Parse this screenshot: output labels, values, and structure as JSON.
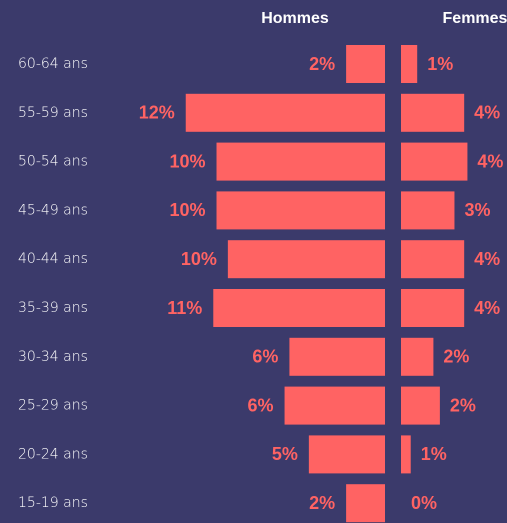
{
  "chart_data": {
    "type": "pyramid",
    "categories": [
      "60-64 ans",
      "55-59 ans",
      "50-54 ans",
      "45-49 ans",
      "40-44 ans",
      "35-39 ans",
      "30-34 ans",
      "25-29 ans",
      "20-24 ans",
      "15-19 ans"
    ],
    "series": [
      {
        "name": "Hommes",
        "color": "#ff6363",
        "values": [
          2.4,
          12.3,
          10.4,
          10.4,
          9.7,
          10.6,
          5.9,
          6.2,
          4.7,
          2.4
        ],
        "value_labels": [
          "2%",
          "12%",
          "10%",
          "10%",
          "10%",
          "11%",
          "6%",
          "6%",
          "5%",
          "2%"
        ]
      },
      {
        "name": "Femmes",
        "color": "#ff6363",
        "values": [
          1.0,
          3.9,
          4.1,
          3.3,
          3.9,
          3.9,
          2.0,
          2.4,
          0.6,
          0
        ],
        "value_labels": [
          "1%",
          "4%",
          "4%",
          "3%",
          "4%",
          "4%",
          "2%",
          "2%",
          "1%",
          "0%"
        ]
      }
    ]
  }
}
